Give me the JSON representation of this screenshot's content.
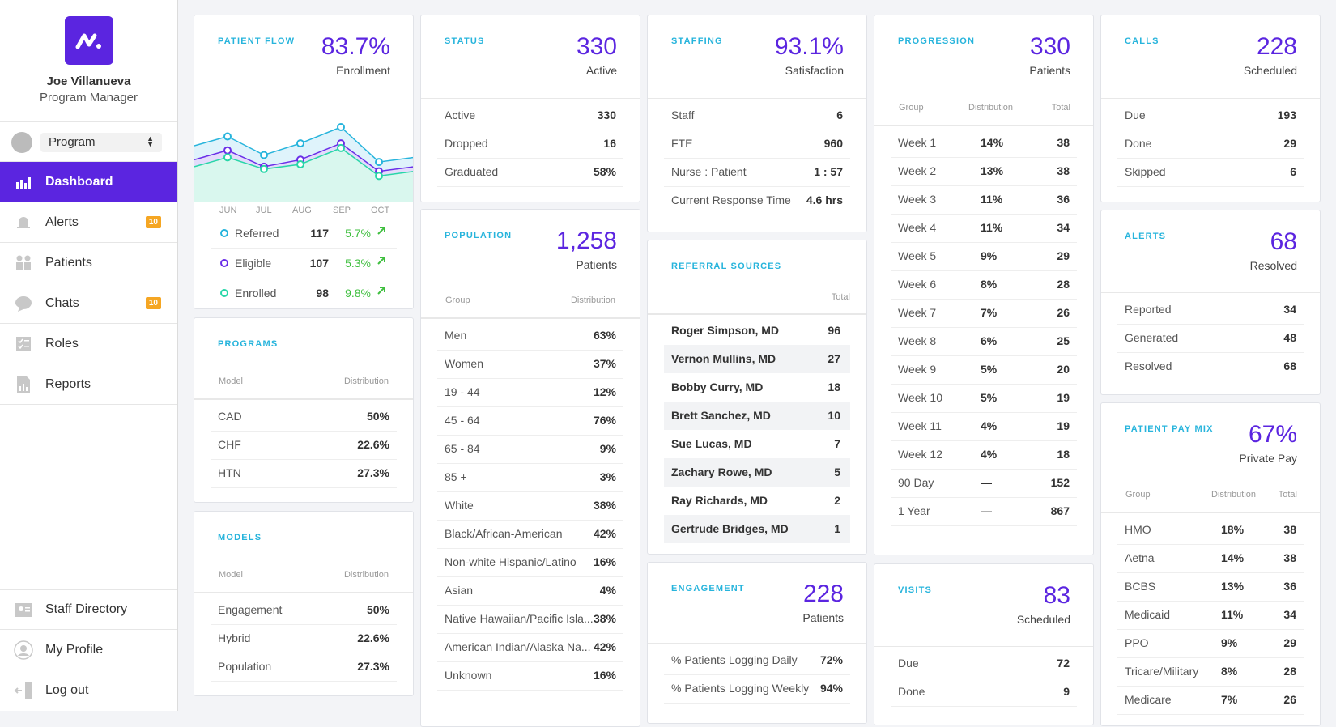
{
  "user": {
    "name": "Joe Villanueva",
    "role": "Program Manager"
  },
  "program_select": "Program",
  "nav": [
    {
      "label": "Dashboard"
    },
    {
      "label": "Alerts",
      "badge": "10"
    },
    {
      "label": "Patients"
    },
    {
      "label": "Chats",
      "badge": "10"
    },
    {
      "label": "Roles"
    },
    {
      "label": "Reports"
    }
  ],
  "nav_bottom": [
    {
      "label": "Staff Directory"
    },
    {
      "label": "My Profile"
    },
    {
      "label": "Log out"
    }
  ],
  "patient_flow": {
    "title": "PATIENT FLOW",
    "big": "83.7%",
    "sub": "Enrollment",
    "months": [
      "JUN",
      "JUL",
      "AUG",
      "SEP",
      "OCT"
    ],
    "legend": [
      {
        "label": "Referred",
        "value": "117",
        "pct": "5.7%"
      },
      {
        "label": "Eligible",
        "value": "107",
        "pct": "5.3%"
      },
      {
        "label": "Enrolled",
        "value": "98",
        "pct": "9.8%"
      }
    ]
  },
  "chart_data": {
    "type": "area",
    "x": [
      "JUN",
      "JUL",
      "AUG",
      "SEP",
      "OCT"
    ],
    "series": [
      {
        "name": "Referred",
        "values": [
          63,
          55,
          60,
          67,
          52
        ]
      },
      {
        "name": "Eligible",
        "values": [
          57,
          50,
          53,
          60,
          48
        ]
      },
      {
        "name": "Enrolled",
        "values": [
          54,
          49,
          51,
          58,
          46
        ]
      }
    ],
    "ylim": [
      35,
      75
    ],
    "legend": "bottom"
  },
  "status": {
    "title": "STATUS",
    "big": "330",
    "sub": "Active",
    "rows": [
      [
        "Active",
        "330"
      ],
      [
        "Dropped",
        "16"
      ],
      [
        "Graduated",
        "58%"
      ]
    ]
  },
  "staffing": {
    "title": "STAFFING",
    "big": "93.1%",
    "sub": "Satisfaction",
    "rows": [
      [
        "Staff",
        "6"
      ],
      [
        "FTE",
        "960"
      ],
      [
        "Nurse : Patient",
        "1 : 57"
      ],
      [
        "Current Response Time",
        "4.6 hrs"
      ]
    ]
  },
  "progression": {
    "title": "PROGRESSION",
    "big": "330",
    "sub": "Patients",
    "h1": "Group",
    "h2": "Distribution",
    "h3": "Total",
    "rows": [
      [
        "Week 1",
        "14%",
        "38"
      ],
      [
        "Week 2",
        "13%",
        "38"
      ],
      [
        "Week 3",
        "11%",
        "36"
      ],
      [
        "Week 4",
        "11%",
        "34"
      ],
      [
        "Week 5",
        "9%",
        "29"
      ],
      [
        "Week 6",
        "8%",
        "28"
      ],
      [
        "Week 7",
        "7%",
        "26"
      ],
      [
        "Week 8",
        "6%",
        "25"
      ],
      [
        "Week 9",
        "5%",
        "20"
      ],
      [
        "Week 10",
        "5%",
        "19"
      ],
      [
        "Week 11",
        "4%",
        "19"
      ],
      [
        "Week 12",
        "4%",
        "18"
      ],
      [
        "90 Day",
        "—",
        "152"
      ],
      [
        "1 Year",
        "—",
        "867"
      ]
    ]
  },
  "calls": {
    "title": "CALLS",
    "big": "228",
    "sub": "Scheduled",
    "rows": [
      [
        "Due",
        "193"
      ],
      [
        "Done",
        "29"
      ],
      [
        "Skipped",
        "6"
      ]
    ]
  },
  "population": {
    "title": "POPULATION",
    "big": "1,258",
    "sub": "Patients",
    "h1": "Group",
    "h2": "Distribution",
    "rows": [
      [
        "Men",
        "63%"
      ],
      [
        "Women",
        "37%"
      ],
      [
        "19 - 44",
        "12%"
      ],
      [
        "45 - 64",
        "76%"
      ],
      [
        "65 - 84",
        "9%"
      ],
      [
        "85 +",
        "3%"
      ],
      [
        "White",
        "38%"
      ],
      [
        "Black/African-American",
        "42%"
      ],
      [
        "Non-white Hispanic/Latino",
        "16%"
      ],
      [
        "Asian",
        "4%"
      ],
      [
        "Native Hawaiian/Pacific Isla...",
        "38%"
      ],
      [
        "American Indian/Alaska Na...",
        "42%"
      ],
      [
        "Unknown",
        "16%"
      ]
    ]
  },
  "referral": {
    "title": "REFERRAL SOURCES",
    "h": "Total",
    "rows": [
      [
        "Roger Simpson, MD",
        "96"
      ],
      [
        "Vernon Mullins, MD",
        "27"
      ],
      [
        "Bobby Curry, MD",
        "18"
      ],
      [
        "Brett Sanchez, MD",
        "10"
      ],
      [
        "Sue Lucas, MD",
        "7"
      ],
      [
        "Zachary Rowe, MD",
        "5"
      ],
      [
        "Ray Richards, MD",
        "2"
      ],
      [
        "Gertrude Bridges, MD",
        "1"
      ]
    ]
  },
  "alerts": {
    "title": "ALERTS",
    "big": "68",
    "sub": "Resolved",
    "rows": [
      [
        "Reported",
        "34"
      ],
      [
        "Generated",
        "48"
      ],
      [
        "Resolved",
        "68"
      ]
    ]
  },
  "programs": {
    "title": "PROGRAMS",
    "h1": "Model",
    "h2": "Distribution",
    "rows": [
      [
        "CAD",
        "50%"
      ],
      [
        "CHF",
        "22.6%"
      ],
      [
        "HTN",
        "27.3%"
      ]
    ]
  },
  "models": {
    "title": "MODELS",
    "h1": "Model",
    "h2": "Distribution",
    "rows": [
      [
        "Engagement",
        "50%"
      ],
      [
        "Hybrid",
        "22.6%"
      ],
      [
        "Population",
        "27.3%"
      ]
    ]
  },
  "engagement": {
    "title": "ENGAGEMENT",
    "big": "228",
    "sub": "Patients",
    "rows": [
      [
        "% Patients Logging Daily",
        "72%"
      ],
      [
        "% Patients Logging Weekly",
        "94%"
      ]
    ]
  },
  "visits": {
    "title": "VISITS",
    "big": "83",
    "sub": "Scheduled",
    "rows": [
      [
        "Due",
        "72"
      ],
      [
        "Done",
        "9"
      ]
    ]
  },
  "paymix": {
    "title": "PATIENT PAY MIX",
    "big": "67%",
    "sub": "Private Pay",
    "h1": "Group",
    "h2": "Distribution",
    "h3": "Total",
    "rows": [
      [
        "HMO",
        "18%",
        "38"
      ],
      [
        "Aetna",
        "14%",
        "38"
      ],
      [
        "BCBS",
        "13%",
        "36"
      ],
      [
        "Medicaid",
        "11%",
        "34"
      ],
      [
        "PPO",
        "9%",
        "29"
      ],
      [
        "Tricare/Military",
        "8%",
        "28"
      ],
      [
        "Medicare",
        "7%",
        "26"
      ]
    ]
  }
}
